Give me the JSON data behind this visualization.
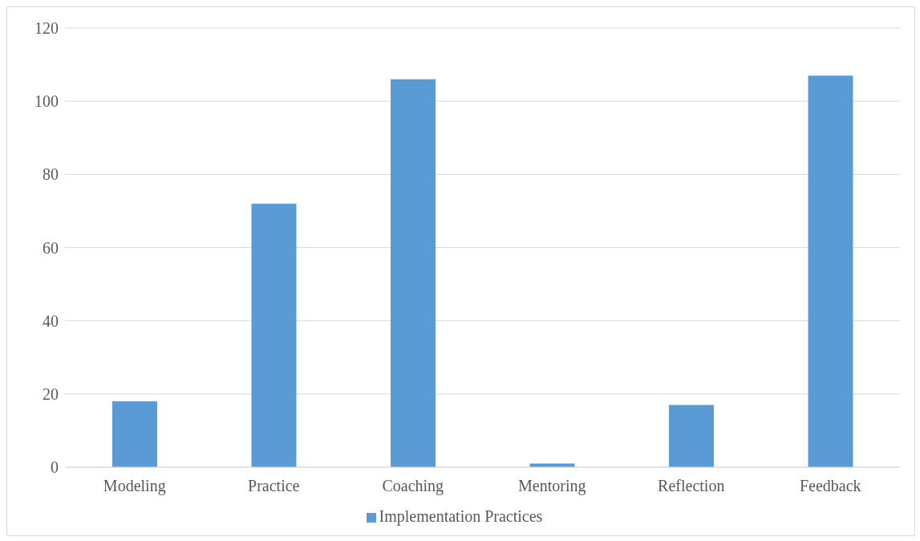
{
  "chart_data": {
    "type": "bar",
    "categories": [
      "Modeling",
      "Practice",
      "Coaching",
      "Mentoring",
      "Reflection",
      "Feedback"
    ],
    "series": [
      {
        "name": "Implementation Practices",
        "color": "#5b9bd5",
        "values": [
          18,
          72,
          106,
          1,
          17,
          107
        ]
      }
    ],
    "ylim": [
      0,
      120
    ],
    "yticks": [
      0,
      20,
      40,
      60,
      80,
      100,
      120
    ],
    "grid": "y",
    "legend": "bottom"
  }
}
